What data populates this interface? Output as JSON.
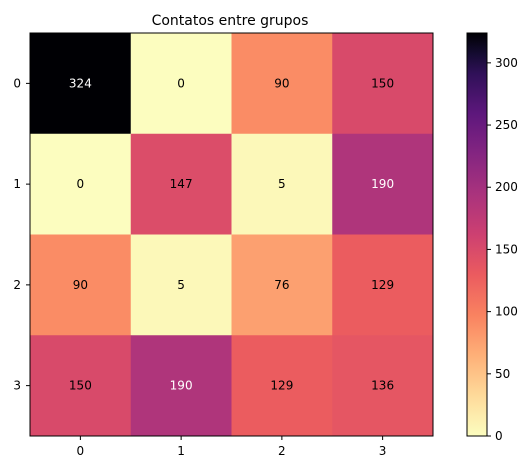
{
  "chart_data": {
    "type": "heatmap",
    "title": "Contatos entre grupos",
    "xlabel": "",
    "ylabel": "",
    "x_categories": [
      "0",
      "1",
      "2",
      "3"
    ],
    "y_categories": [
      "0",
      "1",
      "2",
      "3"
    ],
    "values": [
      [
        324,
        0,
        90,
        150
      ],
      [
        0,
        147,
        5,
        190
      ],
      [
        90,
        5,
        76,
        129
      ],
      [
        150,
        190,
        129,
        136
      ]
    ],
    "colormap": "magma_r",
    "color_range": [
      0,
      324
    ],
    "colorbar": {
      "ticks": [
        0,
        50,
        100,
        150,
        200,
        250,
        300
      ]
    },
    "grid": false
  }
}
